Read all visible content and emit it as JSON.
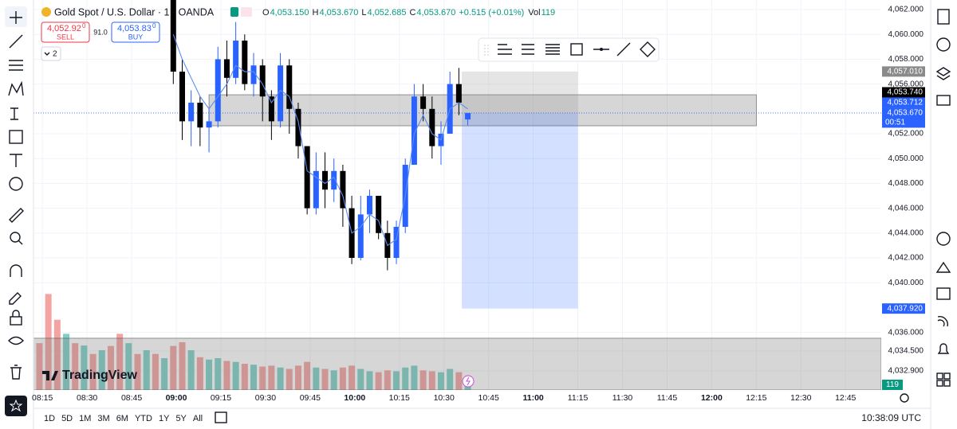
{
  "header": {
    "symbol": "Gold Spot / U.S. Dollar · 1 · OANDA",
    "ohlc": [
      {
        "k": "O",
        "v": "4,053.150"
      },
      {
        "k": "H",
        "v": "4,053.670"
      },
      {
        "k": "L",
        "v": "4,052.685"
      },
      {
        "k": "C",
        "v": "4,053.670"
      }
    ],
    "change": "+0.515 (+0.01%)",
    "vol_label": "Vol"
  },
  "trade": {
    "sell_price": "4,052.92",
    "sell_sup": "0",
    "sell": "SELL",
    "spread": "91.0",
    "buy_price": "4,053.83",
    "buy_sup": "0",
    "buy": "BUY"
  },
  "layers": "2",
  "logo": "TradingView",
  "bottom": {
    "ranges": [
      "1D",
      "5D",
      "1M",
      "3M",
      "6M",
      "YTD",
      "1Y",
      "5Y",
      "All"
    ],
    "clock": "10:38:09 UTC"
  },
  "chart_data": {
    "type": "candlestick",
    "x": [
      "08:59",
      "09:02",
      "09:05",
      "09:08",
      "09:11",
      "09:14",
      "09:17",
      "09:20",
      "09:23",
      "09:26",
      "09:29",
      "09:32",
      "09:35",
      "09:38",
      "09:41",
      "09:44",
      "09:47",
      "09:50",
      "09:53",
      "09:56",
      "09:59",
      "10:02",
      "10:05",
      "10:08",
      "10:11",
      "10:14",
      "10:17",
      "10:20",
      "10:23",
      "10:26",
      "10:29",
      "10:32",
      "10:35",
      "10:38"
    ],
    "open": [
      4063,
      4057,
      4053,
      4054.5,
      4052.5,
      4053,
      4058,
      4056.5,
      4059.5,
      4056,
      4057.5,
      4055,
      4053,
      4057.5,
      4054,
      4051,
      4046,
      4049,
      4047.5,
      4049,
      4046,
      4042,
      4045.5,
      4047,
      4044,
      4042,
      4044.5,
      4049.5,
      4055,
      4054,
      4051,
      4052,
      4056,
      4053.15
    ],
    "high": [
      4063.5,
      4058,
      4055.5,
      4055,
      4054,
      4059,
      4059.5,
      4061,
      4060,
      4058.5,
      4058,
      4055.5,
      4058.5,
      4058,
      4054.5,
      4051,
      4050.5,
      4050.5,
      4050,
      4049.5,
      4047,
      4047,
      4047.5,
      4047,
      4045,
      4045,
      4050,
      4056,
      4056,
      4055,
      4053,
      4057,
      4057.3,
      4053.67
    ],
    "low": [
      4056,
      4051.5,
      4051,
      4051,
      4050.5,
      4052.5,
      4055,
      4056,
      4055.5,
      4055,
      4053,
      4051.5,
      4052.5,
      4052,
      4050,
      4045.5,
      4045.5,
      4046,
      4046.5,
      4044.5,
      4041.5,
      4041.8,
      4044,
      4043.5,
      4041,
      4041.5,
      4044,
      4049.5,
      4053,
      4050,
      4049.5,
      4052,
      4053.5,
      4052.685
    ],
    "close": [
      4057,
      4053,
      4054.5,
      4052.5,
      4053,
      4058,
      4056.5,
      4059.5,
      4056,
      4057.5,
      4055,
      4053,
      4057.5,
      4054,
      4051,
      4046,
      4049,
      4047.5,
      4049,
      4046,
      4042,
      4045.5,
      4047,
      4044,
      4042,
      4044.5,
      4049.5,
      4055,
      4054,
      4051,
      4052,
      4056,
      4054.5,
      4053.67
    ],
    "ma": [
      4060,
      4058,
      4056.5,
      4055,
      4054,
      4055,
      4056,
      4057.5,
      4057,
      4057,
      4056,
      4054.5,
      4055.5,
      4055,
      4053,
      4049,
      4048.5,
      4048,
      4048.5,
      4047,
      4044,
      4044.5,
      4045.5,
      4045,
      4043,
      4043.5,
      4047,
      4052,
      4053.5,
      4052,
      4051.5,
      4054,
      4054.5,
      4054
    ],
    "up_color": "#2962ff",
    "down_color": "#000000",
    "ma_color": "#5b8def",
    "xlim": [
      "08:12",
      "12:57"
    ],
    "xticks": [
      "08:15",
      "08:30",
      "08:45",
      "09:00",
      "09:15",
      "09:30",
      "09:45",
      "10:00",
      "10:15",
      "10:30",
      "10:45",
      "11:00",
      "11:15",
      "11:30",
      "11:45",
      "12:00",
      "12:15",
      "12:30",
      "12:45"
    ],
    "ylim": [
      4031.36,
      4062.77
    ],
    "yticks": [
      {
        "value": 4062,
        "label": "4,062.000"
      },
      {
        "value": 4060,
        "label": "4,060.000"
      },
      {
        "value": 4058,
        "label": "4,058.000"
      },
      {
        "value": 4056,
        "label": "4,056.000"
      },
      {
        "value": 4052,
        "label": "4,052.000"
      },
      {
        "value": 4050,
        "label": "4,050.000"
      },
      {
        "value": 4048,
        "label": "4,048.000"
      },
      {
        "value": 4046,
        "label": "4,046.000"
      },
      {
        "value": 4044,
        "label": "4,044.000"
      },
      {
        "value": 4042,
        "label": "4,042.000"
      },
      {
        "value": 4040,
        "label": "4,040.000"
      },
      {
        "value": 4036,
        "label": "4,036.000"
      },
      {
        "value": 4034.5,
        "label": "4,034.500"
      },
      {
        "value": 4032.9,
        "label": "4,032.900"
      }
    ],
    "volume": {
      "x": [
        "08:14",
        "08:17",
        "08:20",
        "08:23",
        "08:26",
        "08:29",
        "08:32",
        "08:35",
        "08:38",
        "08:41",
        "08:44",
        "08:47",
        "08:50",
        "08:53",
        "08:56",
        "08:59",
        "09:02",
        "09:05",
        "09:08",
        "09:11",
        "09:14",
        "09:17",
        "09:20",
        "09:23",
        "09:26",
        "09:29",
        "09:32",
        "09:35",
        "09:38",
        "09:41",
        "09:44",
        "09:47",
        "09:50",
        "09:53",
        "09:56",
        "09:59",
        "10:02",
        "10:05",
        "10:08",
        "10:11",
        "10:14",
        "10:17",
        "10:20",
        "10:23",
        "10:26",
        "10:29",
        "10:32",
        "10:35",
        "10:38"
      ],
      "values": [
        1000,
        2050,
        1500,
        1200,
        1000,
        950,
        770,
        850,
        940,
        1200,
        1000,
        770,
        850,
        770,
        680,
        940,
        1020,
        850,
        700,
        650,
        680,
        620,
        600,
        560,
        540,
        500,
        520,
        480,
        450,
        520,
        600,
        480,
        450,
        420,
        480,
        520,
        450,
        400,
        380,
        420,
        400,
        480,
        520,
        420,
        400,
        380,
        450,
        380,
        119
      ],
      "up": [
        false,
        false,
        false,
        true,
        false,
        true,
        false,
        true,
        false,
        false,
        true,
        false,
        true,
        false,
        true,
        false,
        false,
        true,
        false,
        true,
        true,
        false,
        true,
        false,
        true,
        false,
        false,
        true,
        false,
        false,
        false,
        true,
        false,
        true,
        false,
        false,
        true,
        true,
        false,
        false,
        true,
        true,
        true,
        false,
        false,
        true,
        true,
        false,
        true
      ],
      "ylim": [
        0,
        2600
      ],
      "up_color": "#7fcfc6",
      "down_color": "#f4a3a3"
    },
    "rectangles": [
      {
        "x": [
          "09:11",
          "12:15"
        ],
        "y": [
          4055.14,
          4052.64
        ]
      },
      {
        "x": [
          "08:12",
          "12:57"
        ],
        "y": [
          4035.53,
          4031.36
        ]
      }
    ],
    "position": {
      "x": [
        "10:36",
        "11:15"
      ],
      "target": 4057.01,
      "entry": 4053.67,
      "stop": 4037.92
    },
    "price_labels": [
      {
        "value": 4057.01,
        "label": "4,057.010",
        "bg": "#8a8a8a"
      },
      {
        "value": 4053.74,
        "label": "4,053.740",
        "bg": "#000000"
      },
      {
        "value": 4053.712,
        "label": "4,053.712",
        "bg": "#2962ff"
      },
      {
        "value": 4053.67,
        "label": "4,053.670",
        "bg": "#2962ff",
        "sub": "00:51"
      },
      {
        "value": 4037.92,
        "label": "4,037.920",
        "bg": "#2962ff"
      }
    ]
  }
}
